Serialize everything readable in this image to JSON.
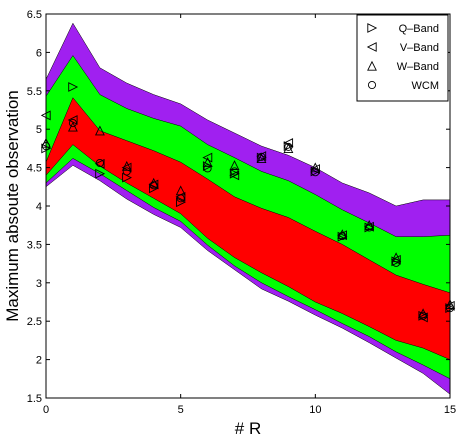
{
  "chart_data": {
    "type": "area",
    "title": "",
    "xlabel": "# R",
    "ylabel": "Maximum absoute observation",
    "xlim": [
      0,
      15
    ],
    "ylim": [
      1.5,
      6.5
    ],
    "x_ticks": [
      "0",
      "5",
      "10",
      "15"
    ],
    "y_ticks": [
      "1.5",
      "2",
      "2.5",
      "3",
      "3.5",
      "4",
      "4.5",
      "5",
      "5.5",
      "6",
      "6.5"
    ],
    "grid": false,
    "legend_position": "top-right",
    "band_colors": {
      "outer": "#a020f0",
      "middle": "#00ff00",
      "inner": "#ff0000"
    },
    "x": [
      0,
      1,
      2,
      3,
      4,
      5,
      6,
      7,
      8,
      9,
      10,
      11,
      12,
      13,
      14,
      15
    ],
    "bands": {
      "purple_upper": [
        5.65,
        6.38,
        5.8,
        5.6,
        5.45,
        5.33,
        5.12,
        4.95,
        4.78,
        4.66,
        4.5,
        4.3,
        4.17,
        4.0,
        4.08,
        4.08
      ],
      "green_upper": [
        5.43,
        5.96,
        5.45,
        5.27,
        5.14,
        5.04,
        4.8,
        4.63,
        4.45,
        4.33,
        4.15,
        3.95,
        3.78,
        3.6,
        3.6,
        3.62
      ],
      "red_upper": [
        4.57,
        5.41,
        4.98,
        4.85,
        4.72,
        4.57,
        4.35,
        4.12,
        3.97,
        3.85,
        3.67,
        3.5,
        3.3,
        3.1,
        2.98,
        2.87
      ],
      "red_lower": [
        4.4,
        4.8,
        4.52,
        4.3,
        4.1,
        3.9,
        3.58,
        3.33,
        3.13,
        2.95,
        2.75,
        2.6,
        2.43,
        2.25,
        2.15,
        2.0
      ],
      "green_lower": [
        4.3,
        4.62,
        4.42,
        4.2,
        3.98,
        3.8,
        3.49,
        3.22,
        3.0,
        2.82,
        2.65,
        2.47,
        2.3,
        2.1,
        1.93,
        1.75
      ],
      "purple_lower": [
        4.25,
        4.53,
        4.33,
        4.09,
        3.89,
        3.72,
        3.42,
        3.17,
        2.92,
        2.76,
        2.58,
        2.41,
        2.22,
        2.02,
        1.82,
        1.55
      ]
    },
    "series": [
      {
        "name": "Q–Band",
        "marker": "triangle-right",
        "points": [
          [
            0,
            4.75
          ],
          [
            1,
            5.55
          ],
          [
            2,
            4.42
          ],
          [
            3,
            4.37
          ],
          [
            4,
            4.23
          ],
          [
            5,
            4.05
          ],
          [
            6,
            4.52
          ],
          [
            7,
            4.42
          ],
          [
            8,
            4.63
          ],
          [
            9,
            4.78
          ],
          [
            10,
            4.45
          ],
          [
            11,
            3.6
          ],
          [
            12,
            3.72
          ],
          [
            13,
            3.28
          ],
          [
            14,
            2.57
          ],
          [
            15,
            2.67
          ]
        ]
      },
      {
        "name": "V–Band",
        "marker": "triangle-left",
        "points": [
          [
            0,
            5.18
          ],
          [
            1,
            5.12
          ],
          [
            2,
            4.55
          ],
          [
            3,
            4.5
          ],
          [
            4,
            4.28
          ],
          [
            5,
            4.12
          ],
          [
            6,
            4.63
          ],
          [
            7,
            4.4
          ],
          [
            8,
            4.65
          ],
          [
            9,
            4.82
          ],
          [
            10,
            4.48
          ],
          [
            11,
            3.62
          ],
          [
            12,
            3.73
          ],
          [
            13,
            3.3
          ],
          [
            14,
            2.55
          ],
          [
            15,
            2.7
          ]
        ]
      },
      {
        "name": "W–Band",
        "marker": "triangle-up",
        "points": [
          [
            0,
            4.82
          ],
          [
            1,
            5.03
          ],
          [
            2,
            4.98
          ],
          [
            3,
            4.52
          ],
          [
            4,
            4.3
          ],
          [
            5,
            4.2
          ],
          [
            6,
            4.57
          ],
          [
            7,
            4.53
          ],
          [
            8,
            4.62
          ],
          [
            9,
            4.75
          ],
          [
            10,
            4.5
          ],
          [
            11,
            3.63
          ],
          [
            12,
            3.75
          ],
          [
            13,
            3.33
          ],
          [
            14,
            2.6
          ],
          [
            15,
            2.72
          ]
        ]
      },
      {
        "name": "WCM",
        "marker": "circle",
        "points": [
          [
            0,
            4.78
          ],
          [
            1,
            5.08
          ],
          [
            2,
            4.56
          ],
          [
            3,
            4.45
          ],
          [
            4,
            4.27
          ],
          [
            5,
            4.1
          ],
          [
            6,
            4.49
          ],
          [
            7,
            4.45
          ],
          [
            8,
            4.64
          ],
          [
            9,
            4.77
          ],
          [
            10,
            4.44
          ],
          [
            11,
            3.61
          ],
          [
            12,
            3.72
          ],
          [
            13,
            3.26
          ],
          [
            14,
            2.57
          ],
          [
            15,
            2.67
          ]
        ]
      }
    ]
  }
}
